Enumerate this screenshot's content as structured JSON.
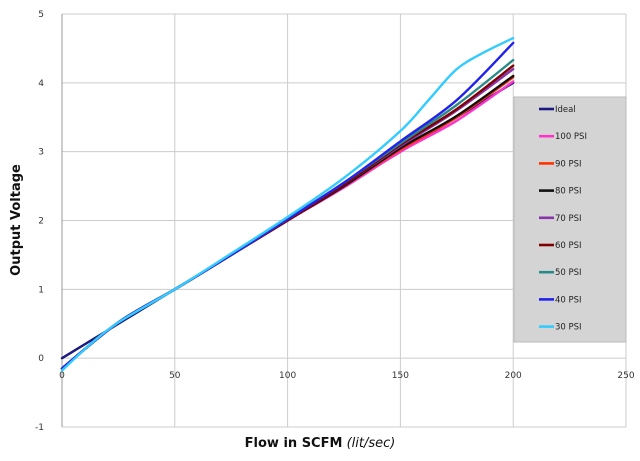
{
  "chart_data": {
    "type": "line",
    "xlabel": "Flow in SCFM",
    "xlabel_unit": "(lit/sec)",
    "ylabel": "Output Voltage",
    "xlim": [
      0,
      250
    ],
    "ylim": [
      -1,
      5
    ],
    "xticks": [
      0,
      50,
      100,
      150,
      200,
      250
    ],
    "yticks": [
      -1,
      0,
      1,
      2,
      3,
      4,
      5
    ],
    "grid": true,
    "legend_position": "right",
    "series": [
      {
        "name": "Ideal",
        "color": "#1a1a80",
        "x": [
          0,
          50,
          100,
          150,
          200
        ],
        "y": [
          0,
          1,
          2,
          3,
          4
        ]
      },
      {
        "name": "100 PSI",
        "color": "#ff33cc",
        "x": [
          0,
          25,
          50,
          75,
          100,
          125,
          150,
          175,
          200
        ],
        "y": [
          -0.15,
          0.52,
          1.0,
          1.5,
          2.0,
          2.48,
          3.0,
          3.45,
          4.02
        ]
      },
      {
        "name": "90 PSI",
        "color": "#ff3300",
        "x": [
          0,
          25,
          50,
          75,
          100,
          125,
          150,
          175,
          200
        ],
        "y": [
          -0.15,
          0.52,
          1.0,
          1.5,
          2.0,
          2.5,
          3.03,
          3.5,
          4.08
        ]
      },
      {
        "name": "80 PSI",
        "color": "#111111",
        "x": [
          0,
          25,
          50,
          75,
          100,
          125,
          150,
          175,
          200
        ],
        "y": [
          -0.15,
          0.52,
          1.0,
          1.5,
          2.0,
          2.5,
          3.05,
          3.52,
          4.1
        ]
      },
      {
        "name": "70 PSI",
        "color": "#8833aa",
        "x": [
          0,
          25,
          50,
          75,
          100,
          125,
          150,
          175,
          200
        ],
        "y": [
          -0.15,
          0.52,
          1.0,
          1.5,
          2.0,
          2.52,
          3.08,
          3.6,
          4.2
        ]
      },
      {
        "name": "60 PSI",
        "color": "#800000",
        "x": [
          0,
          25,
          50,
          75,
          100,
          125,
          150,
          175,
          200
        ],
        "y": [
          -0.15,
          0.52,
          1.0,
          1.5,
          2.0,
          2.52,
          3.1,
          3.62,
          4.25
        ]
      },
      {
        "name": "50 PSI",
        "color": "#2a8a8a",
        "x": [
          0,
          25,
          50,
          75,
          100,
          125,
          150,
          175,
          200
        ],
        "y": [
          -0.15,
          0.52,
          1.0,
          1.5,
          2.02,
          2.55,
          3.12,
          3.68,
          4.33
        ]
      },
      {
        "name": "40 PSI",
        "color": "#2222ee",
        "x": [
          0,
          25,
          50,
          75,
          100,
          125,
          150,
          175,
          200
        ],
        "y": [
          -0.15,
          0.52,
          1.0,
          1.5,
          2.02,
          2.55,
          3.15,
          3.75,
          4.58
        ]
      },
      {
        "name": "30 PSI",
        "color": "#33ccff",
        "x": [
          0,
          12.5,
          25,
          50,
          75,
          100,
          125,
          150,
          162.5,
          175,
          187.5,
          200
        ],
        "y": [
          -0.18,
          0.2,
          0.52,
          1.0,
          1.52,
          2.05,
          2.62,
          3.3,
          3.75,
          4.2,
          4.45,
          4.65
        ]
      }
    ]
  }
}
